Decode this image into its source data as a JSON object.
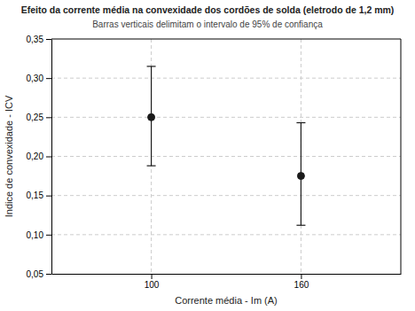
{
  "chart_data": {
    "type": "scatter",
    "title": "Efeito da corrente média na convexidade dos cordões de solda (eletrodo de 1,2 mm)",
    "subtitle": "Barras verticais delimitam o intervalo de 95% de confiança",
    "x_label": "Corrente média - Im (A)",
    "y_label": "Indice de convexidade - ICV",
    "x": [
      100,
      160
    ],
    "values": [
      0.25,
      0.175
    ],
    "y_upper": [
      0.315,
      0.243
    ],
    "y_lower": [
      0.188,
      0.112
    ],
    "color": "#1a1a1a",
    "marker": "circle",
    "xlim": [
      60,
      200
    ],
    "ylim": [
      0.05,
      0.35
    ],
    "xticks": [
      100,
      160
    ],
    "yticks": [
      {
        "value": 0.05,
        "label": "0,05"
      },
      {
        "value": 0.1,
        "label": "0,10"
      },
      {
        "value": 0.15,
        "label": "0,15"
      },
      {
        "value": 0.2,
        "label": "0,20"
      },
      {
        "value": 0.25,
        "label": "0,25"
      },
      {
        "value": 0.3,
        "label": "0,30"
      },
      {
        "value": 0.35,
        "label": "0,35"
      }
    ],
    "grid": true
  }
}
